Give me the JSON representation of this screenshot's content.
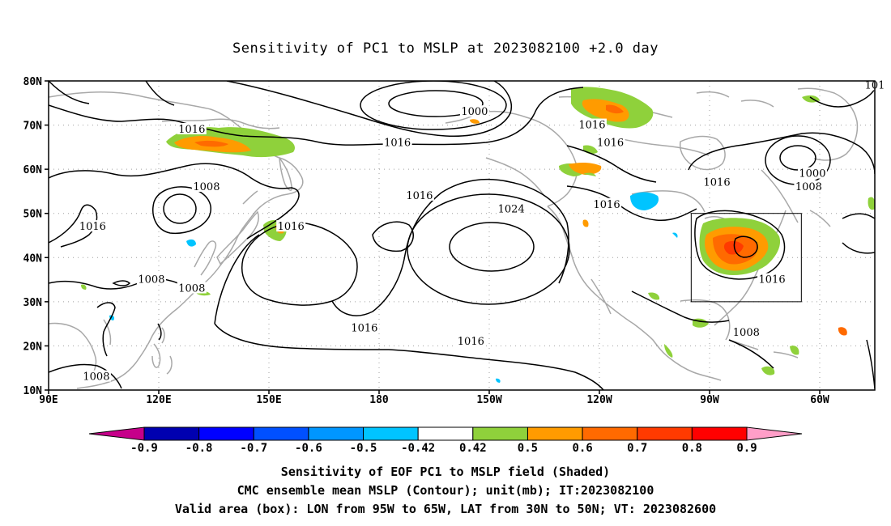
{
  "title": "Sensitivity of PC1 to MSLP at 2023082100 +2.0 day",
  "colors": {
    "contour": "#000000",
    "coastline": "#a0a0a0",
    "grid": "#a0a0a0",
    "pos_042_05": "#8fd13b",
    "pos_05_06": "#ff9b00",
    "pos_06_07": "#ff6a00",
    "pos_07_08": "#ff3a00",
    "neg_042_05": "#00c4ff",
    "neg_05_06": "#0096ff",
    "neg_06_07": "#0050ff",
    "neg_07_08": "#0000ff",
    "neg_08_09": "#0000b0",
    "pos_08_09": "#ff0000",
    "lt_neg09": "#c6008a",
    "gt_09": "#ff9ec8"
  },
  "map": {
    "lat_labels": [
      "80N",
      "70N",
      "60N",
      "50N",
      "40N",
      "30N",
      "20N",
      "10N"
    ],
    "lon_labels": [
      "90E",
      "120E",
      "150E",
      "180",
      "150W",
      "120W",
      "90W",
      "60W"
    ],
    "lat_range": [
      10,
      80
    ],
    "lon_range_east": [
      90,
      315
    ],
    "contour_labels": [
      {
        "text": "1000",
        "lon": 206,
        "lat": 73
      },
      {
        "text": "1016",
        "lon": 129,
        "lat": 69
      },
      {
        "text": "1016",
        "lon": 185,
        "lat": 66
      },
      {
        "text": "1016",
        "lon": 238,
        "lat": 70
      },
      {
        "text": "1016",
        "lon": 243,
        "lat": 66
      },
      {
        "text": "1000",
        "lon": 298,
        "lat": 59
      },
      {
        "text": "1008",
        "lon": 297,
        "lat": 56
      },
      {
        "text": "101",
        "lon": 315,
        "lat": 79
      },
      {
        "text": "1008",
        "lon": 133,
        "lat": 56
      },
      {
        "text": "1016",
        "lon": 102,
        "lat": 47
      },
      {
        "text": "1016",
        "lon": 156,
        "lat": 47
      },
      {
        "text": "1016",
        "lon": 191,
        "lat": 54
      },
      {
        "text": "1024",
        "lon": 216,
        "lat": 51
      },
      {
        "text": "1016",
        "lon": 242,
        "lat": 52
      },
      {
        "text": "1016",
        "lon": 272,
        "lat": 57
      },
      {
        "text": "1016",
        "lon": 287,
        "lat": 35
      },
      {
        "text": "1008",
        "lon": 118,
        "lat": 35
      },
      {
        "text": "1008",
        "lon": 129,
        "lat": 33
      },
      {
        "text": "1016",
        "lon": 176,
        "lat": 24
      },
      {
        "text": "1016",
        "lon": 205,
        "lat": 21
      },
      {
        "text": "1008",
        "lon": 280,
        "lat": 23
      },
      {
        "text": "1008",
        "lon": 103,
        "lat": 13
      }
    ],
    "valid_box": {
      "lon_w": 265,
      "lon_e": 295,
      "lat_s": 30,
      "lat_n": 50
    }
  },
  "colorbar": {
    "labels": [
      "-0.9",
      "-0.8",
      "-0.7",
      "-0.6",
      "-0.5",
      "-0.42",
      "0.42",
      "0.5",
      "0.6",
      "0.7",
      "0.8",
      "0.9"
    ]
  },
  "footer": {
    "line1": "Sensitivity of EOF PC1 to MSLP field (Shaded)",
    "line2": "CMC ensemble mean MSLP (Contour); unit(mb); IT:2023082100",
    "line3": "Valid area (box): LON from 95W to 65W, LAT from 30N to 50N; VT: 2023082600"
  }
}
